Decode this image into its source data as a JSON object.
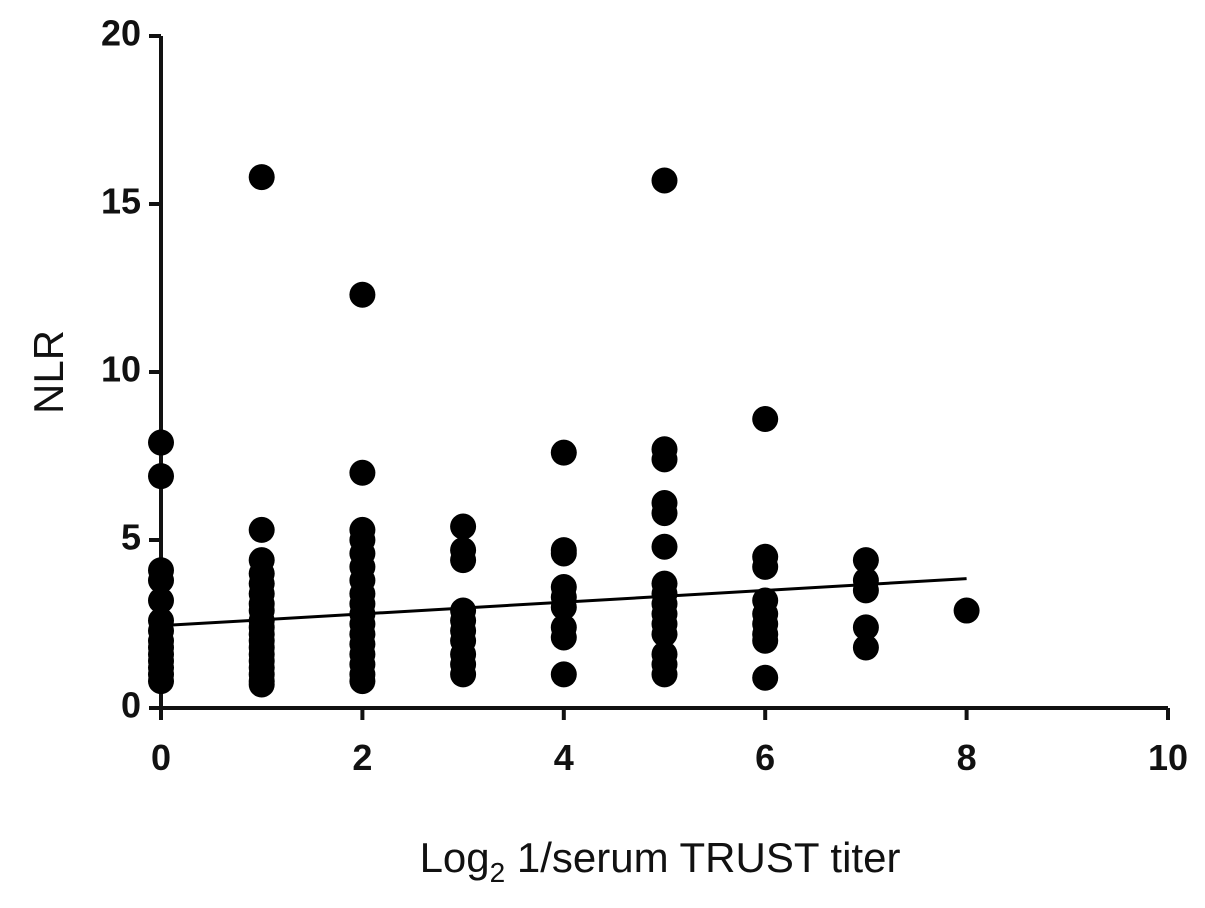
{
  "chart_data": {
    "type": "scatter",
    "ylabel": "NLR",
    "xlabel_parts": [
      "Log",
      "2",
      " 1/serum TRUST titer"
    ],
    "xlim": [
      0,
      10
    ],
    "xticks": [
      0,
      2,
      4,
      6,
      8,
      10
    ],
    "ylim": [
      0,
      20
    ],
    "yticks": [
      0,
      5,
      10,
      15,
      20
    ],
    "color": "#000000",
    "series": [
      {
        "x": [
          0,
          0,
          0,
          0,
          0,
          0,
          0,
          0,
          0,
          0,
          0,
          0,
          0,
          0,
          1,
          1,
          1,
          1,
          1,
          1,
          1,
          1,
          1,
          1,
          1,
          1,
          1,
          1,
          1,
          1,
          1,
          1,
          1,
          2,
          2,
          2,
          2,
          2,
          2,
          2,
          2,
          2,
          2,
          2,
          2,
          2,
          2,
          2,
          2,
          2,
          3,
          3,
          3,
          3,
          3,
          3,
          3,
          3,
          3,
          3,
          4,
          4,
          4,
          4,
          4,
          4,
          4,
          4,
          4,
          5,
          5,
          5,
          5,
          5,
          5,
          5,
          5,
          5,
          5,
          5,
          5,
          5,
          5,
          5,
          6,
          6,
          6,
          6,
          6,
          6,
          6,
          6,
          6,
          7,
          7,
          7,
          7,
          7,
          8
        ],
        "values": [
          7.9,
          6.9,
          4.1,
          3.8,
          3.2,
          2.6,
          2.3,
          2.0,
          1.8,
          1.6,
          1.4,
          1.2,
          1.0,
          0.8,
          15.8,
          5.3,
          4.4,
          4.0,
          3.7,
          3.4,
          3.1,
          2.9,
          2.6,
          2.4,
          2.2,
          2.0,
          1.8,
          1.6,
          1.4,
          1.2,
          1.0,
          0.8,
          0.7,
          12.3,
          7.0,
          5.3,
          5.0,
          4.6,
          4.2,
          3.8,
          3.4,
          3.1,
          2.8,
          2.5,
          2.2,
          1.9,
          1.6,
          1.3,
          1.0,
          0.8,
          5.4,
          4.7,
          4.4,
          2.9,
          2.6,
          2.3,
          2.0,
          1.6,
          1.3,
          1.0,
          7.6,
          4.7,
          4.6,
          3.6,
          3.3,
          3.0,
          2.4,
          2.1,
          1.0,
          15.7,
          7.7,
          7.4,
          6.1,
          5.8,
          4.8,
          3.7,
          3.4,
          3.1,
          2.8,
          2.5,
          2.2,
          1.6,
          1.3,
          1.0,
          8.6,
          4.5,
          4.2,
          3.2,
          2.8,
          2.5,
          2.2,
          2.0,
          0.9,
          4.4,
          3.8,
          3.5,
          2.4,
          1.8,
          2.9
        ]
      }
    ],
    "trend_line": {
      "x": [
        0,
        8
      ],
      "values": [
        2.45,
        3.85
      ]
    }
  }
}
